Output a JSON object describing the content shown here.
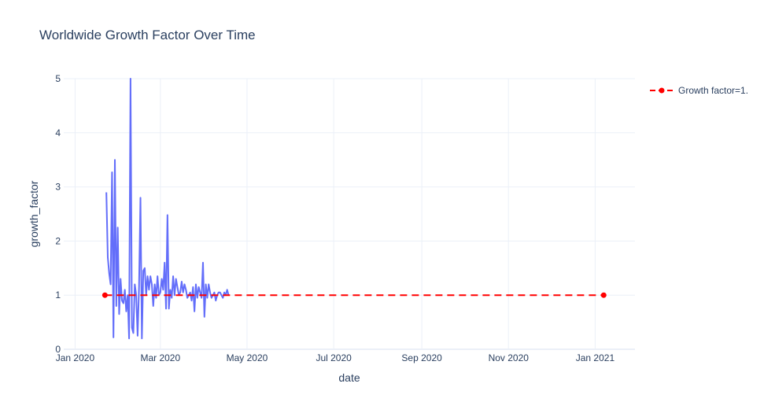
{
  "chart_data": {
    "type": "line",
    "title": "Worldwide Growth Factor Over Time",
    "xlabel": "date",
    "ylabel": "growth_factor",
    "xlim": [
      "2019-12-24",
      "2021-01-29"
    ],
    "ylim": [
      0,
      5
    ],
    "x_ticks": [
      {
        "date": "2020-01-01",
        "label": "Jan 2020"
      },
      {
        "date": "2020-03-01",
        "label": "Mar 2020"
      },
      {
        "date": "2020-05-01",
        "label": "May 2020"
      },
      {
        "date": "2020-07-01",
        "label": "Jul 2020"
      },
      {
        "date": "2020-09-01",
        "label": "Sep 2020"
      },
      {
        "date": "2020-11-01",
        "label": "Nov 2020"
      },
      {
        "date": "2021-01-01",
        "label": "Jan 2021"
      }
    ],
    "y_ticks": [
      0,
      1,
      2,
      3,
      4,
      5
    ],
    "grid": true,
    "legend_position": "top-right",
    "series": [
      {
        "name": "",
        "color": "#636efa",
        "mode": "lines",
        "x": [
          "2020-01-23",
          "2020-01-24",
          "2020-01-25",
          "2020-01-26",
          "2020-01-27",
          "2020-01-28",
          "2020-01-29",
          "2020-01-30",
          "2020-01-31",
          "2020-02-01",
          "2020-02-02",
          "2020-02-03",
          "2020-02-04",
          "2020-02-05",
          "2020-02-06",
          "2020-02-07",
          "2020-02-08",
          "2020-02-09",
          "2020-02-10",
          "2020-02-11",
          "2020-02-12",
          "2020-02-13",
          "2020-02-14",
          "2020-02-15",
          "2020-02-16",
          "2020-02-17",
          "2020-02-18",
          "2020-02-19",
          "2020-02-20",
          "2020-02-21",
          "2020-02-22",
          "2020-02-23",
          "2020-02-24",
          "2020-02-25",
          "2020-02-26",
          "2020-02-27",
          "2020-02-28",
          "2020-02-29",
          "2020-03-01",
          "2020-03-02",
          "2020-03-03",
          "2020-03-04",
          "2020-03-05",
          "2020-03-06",
          "2020-03-07",
          "2020-03-08",
          "2020-03-09",
          "2020-03-10",
          "2020-03-11",
          "2020-03-12",
          "2020-03-13",
          "2020-03-14",
          "2020-03-15",
          "2020-03-16",
          "2020-03-17",
          "2020-03-18",
          "2020-03-19",
          "2020-03-20",
          "2020-03-21",
          "2020-03-22",
          "2020-03-23",
          "2020-03-24",
          "2020-03-25",
          "2020-03-26",
          "2020-03-27",
          "2020-03-28",
          "2020-03-29",
          "2020-03-30",
          "2020-03-31",
          "2020-04-01",
          "2020-04-02",
          "2020-04-03",
          "2020-04-04",
          "2020-04-05",
          "2020-04-06",
          "2020-04-07",
          "2020-04-08",
          "2020-04-09",
          "2020-04-10",
          "2020-04-11",
          "2020-04-12",
          "2020-04-13",
          "2020-04-14",
          "2020-04-15",
          "2020-04-16",
          "2020-04-17",
          "2020-04-18"
        ],
        "y": [
          2.9,
          1.7,
          1.4,
          1.2,
          3.27,
          0.22,
          3.5,
          0.8,
          2.25,
          0.65,
          1.3,
          0.9,
          0.85,
          1.1,
          0.7,
          1.0,
          0.2,
          5.0,
          0.4,
          0.3,
          1.2,
          1.0,
          0.25,
          1.15,
          2.8,
          0.2,
          1.45,
          1.5,
          1.0,
          1.35,
          1.1,
          1.35,
          1.2,
          0.8,
          1.2,
          0.95,
          1.35,
          1.0,
          1.05,
          1.3,
          1.1,
          1.6,
          0.75,
          2.48,
          0.75,
          1.1,
          0.95,
          1.35,
          1.0,
          1.3,
          1.15,
          1.0,
          1.05,
          1.25,
          1.05,
          1.2,
          1.1,
          0.95,
          1.0,
          1.05,
          0.9,
          1.15,
          0.7,
          1.2,
          0.95,
          1.15,
          1.05,
          0.95,
          1.6,
          0.6,
          1.2,
          0.95,
          1.2,
          1.05,
          0.95,
          1.0,
          1.05,
          0.9,
          1.0,
          1.05,
          1.05,
          1.0,
          0.95,
          1.05,
          1.0,
          1.1,
          1.0
        ]
      },
      {
        "name": "Growth factor=1.",
        "color": "#ff0000",
        "mode": "lines+markers",
        "dash": "dash",
        "x": [
          "2020-01-22",
          "2021-01-07"
        ],
        "y": [
          1.0,
          1.0
        ]
      }
    ]
  }
}
